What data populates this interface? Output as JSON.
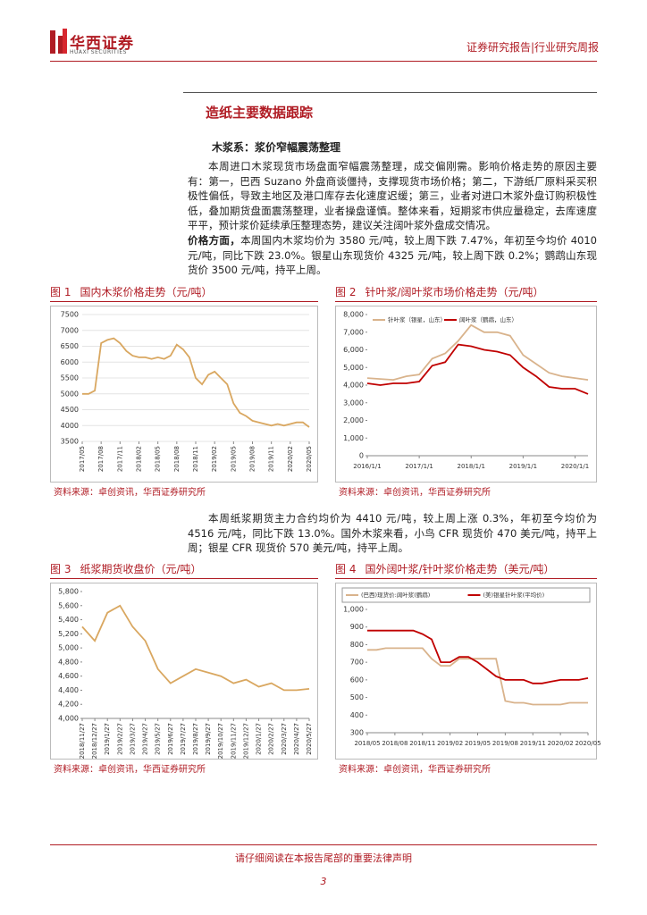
{
  "header": {
    "logo_cn": "华西证券",
    "logo_en": "HUAXI SECURITIES",
    "right": "证券研究报告|行业研究周报"
  },
  "section_title": "造纸主要数据跟踪",
  "subsection": "木浆系：浆价窄幅震荡整理",
  "paragraphs": [
    "本周进口木浆现货市场盘面窄幅震荡整理，成交偏刚需。影响价格走势的原因主要有：第一，巴西 Suzano 外盘商谈僵持，支撑现货市场价格；第二，下游纸厂原料采买积极性偏低，导致主地区及港口库存去化速度迟缓；第三，业者对进口木浆外盘订购积极性低，叠加期货盘面震荡整理，业者操盘谨慎。整体来看，短期浆市供应量稳定，去库速度平平，预计浆价延续承压整理态势，建议关注阔叶浆外盘成交情况。",
    "本周国内木浆均价为 3580 元/吨，较上周下跌 7.47%，年初至今均价 4010 元/吨，同比下跌 23.0%。银星山东现货价 4325 元/吨，较上周下跌 0.2%；鹦鹉山东现货价 3500 元/吨，持平上周。",
    "本周纸浆期货主力合约均价为 4410 元/吨，较上周上涨 0.3%，年初至今均价为 4516 元/吨，同比下跌 13.0%。国外木浆来看，小鸟 CFR 现货价 470 美元/吨，持平上周；银星 CFR 现货价 570 美元/吨，持平上周。"
  ],
  "price_lead": "价格方面，",
  "figures": [
    {
      "number": "图 1",
      "caption": "国内木浆价格走势（元/吨）",
      "source": "资料来源：卓创资讯，华西证券研究所",
      "chart_data": {
        "type": "line",
        "categories": [
          "2017/05",
          null,
          null,
          "2017/08",
          null,
          null,
          "2017/11",
          null,
          null,
          "2018/02",
          null,
          null,
          "2018/05",
          null,
          null,
          "2018/08",
          null,
          null,
          "2018/11",
          null,
          null,
          "2019/02",
          null,
          null,
          "2019/05",
          null,
          null,
          "2019/08",
          null,
          null,
          "2019/11",
          null,
          null,
          "2020/02",
          null,
          null,
          "2020/05"
        ],
        "series": [
          {
            "color": "#d9a760",
            "values": [
              5000,
              5000,
              5100,
              6600,
              6700,
              6750,
              6600,
              6350,
              6200,
              6150,
              6150,
              6100,
              6150,
              6100,
              6200,
              6550,
              6400,
              6150,
              5500,
              5300,
              5600,
              5700,
              5500,
              5300,
              4700,
              4400,
              4300,
              4150,
              4100,
              4050,
              4000,
              4050,
              4000,
              4050,
              4100,
              4100,
              3950
            ]
          }
        ],
        "ylim": [
          3500,
          7500
        ],
        "yticks": [
          3500,
          4000,
          4500,
          5000,
          5500,
          6000,
          6500,
          7000,
          7500
        ],
        "grid": true
      }
    },
    {
      "number": "图 2",
      "caption": "针叶浆/阔叶浆市场价格走势（元/吨）",
      "source": "资料来源：卓创资讯，华西证券研究所",
      "chart_data": {
        "type": "line",
        "categories": [
          "2016/1/1",
          null,
          null,
          null,
          "2017/1/1",
          null,
          null,
          null,
          "2018/1/1",
          null,
          null,
          null,
          "2019/1/1",
          null,
          null,
          null,
          "2020/1/1",
          null
        ],
        "series": [
          {
            "name": "针叶浆（银星，山东）",
            "color": "#d9b38c",
            "values": [
              4400,
              4350,
              4300,
              4500,
              4600,
              5500,
              5800,
              6500,
              7400,
              7000,
              7000,
              6800,
              5700,
              5200,
              4700,
              4500,
              4400,
              4300
            ]
          },
          {
            "name": "阔叶浆（鹦鹉，山东）",
            "color": "#c00000",
            "values": [
              4100,
              4000,
              4100,
              4100,
              4200,
              5100,
              5300,
              6300,
              6200,
              6000,
              5900,
              5700,
              5000,
              4500,
              3900,
              3800,
              3800,
              3500
            ]
          }
        ],
        "ylim": [
          0,
          8000
        ],
        "yticks": [
          0,
          {
            "value": 1000,
            "label": "1,000"
          },
          {
            "value": 2000,
            "label": "2,000"
          },
          {
            "value": 3000,
            "label": "3,000"
          },
          {
            "value": 4000,
            "label": "4,000"
          },
          {
            "value": 5000,
            "label": "5,000"
          },
          {
            "value": 6000,
            "label": "6,000"
          },
          {
            "value": 7000,
            "label": "7,000"
          },
          {
            "value": 8000,
            "label": "8,000"
          }
        ],
        "grid": false,
        "legend": "top-left"
      }
    },
    {
      "number": "图 3",
      "caption": "纸浆期货收盘价（元/吨）",
      "source": "资料来源：卓创资讯，华西证券研究所",
      "chart_data": {
        "type": "line",
        "categories": [
          "2018/11/27",
          "2018/12/27",
          "2019/1/27",
          "2019/2/27",
          "2019/3/27",
          "2019/4/27",
          "2019/5/27",
          "2019/6/27",
          "2019/7/27",
          "2019/8/27",
          "2019/9/27",
          "2019/10/27",
          "2019/11/27",
          "2019/12/27",
          "2020/1/27",
          "2020/2/27",
          "2020/3/27",
          "2020/4/27",
          "2020/5/27"
        ],
        "series": [
          {
            "color": "#d9a760",
            "values": [
              5300,
              5100,
              5500,
              5600,
              5300,
              5100,
              4700,
              4500,
              4600,
              4700,
              4650,
              4600,
              4500,
              4550,
              4450,
              4500,
              4400,
              4400,
              4420
            ]
          }
        ],
        "ylim": [
          4000,
          5800
        ],
        "yticks": [
          {
            "value": 4000,
            "label": "4,000"
          },
          {
            "value": 4200,
            "label": "4,200"
          },
          {
            "value": 4400,
            "label": "4,400"
          },
          {
            "value": 4600,
            "label": "4,600"
          },
          {
            "value": 4800,
            "label": "4,800"
          },
          {
            "value": 5000,
            "label": "5,000"
          },
          {
            "value": 5200,
            "label": "5,200"
          },
          {
            "value": 5400,
            "label": "5,400"
          },
          {
            "value": 5600,
            "label": "5,600"
          },
          {
            "value": 5800,
            "label": "5,800"
          }
        ],
        "grid": false
      }
    },
    {
      "number": "图 4",
      "caption": "国外阔叶浆/针叶浆价格走势（美元/吨）",
      "source": "资料来源：卓创资讯，华西证券研究所",
      "chart_data": {
        "type": "line",
        "categories": [
          "2018/05",
          null,
          null,
          "2018/08",
          null,
          null,
          "2018/11",
          null,
          null,
          "2019/02",
          null,
          null,
          "2019/05",
          null,
          null,
          "2019/08",
          null,
          null,
          "2019/11",
          null,
          null,
          "2020/02",
          null,
          null,
          "2020/05"
        ],
        "series": [
          {
            "name": "(巴西)现货价:阔叶浆(鹦鹉)",
            "color": "#d9b38c",
            "values": [
              770,
              770,
              780,
              780,
              780,
              780,
              780,
              720,
              680,
              680,
              720,
              720,
              720,
              720,
              720,
              480,
              470,
              470,
              460,
              460,
              460,
              460,
              470,
              470,
              470
            ]
          },
          {
            "name": "(美)银星针叶浆(平均价)",
            "color": "#c00000",
            "values": [
              880,
              880,
              880,
              880,
              880,
              880,
              860,
              830,
              700,
              700,
              730,
              730,
              700,
              660,
              620,
              600,
              600,
              600,
              580,
              580,
              590,
              600,
              600,
              600,
              610
            ]
          }
        ],
        "ylim": [
          300,
          1000
        ],
        "yticks": [
          300,
          400,
          500,
          600,
          700,
          800,
          900,
          {
            "value": 1000,
            "label": "1,000"
          }
        ],
        "grid": false,
        "legend": "top"
      }
    }
  ],
  "footer": {
    "notice": "请仔细阅读在本报告尾部的重要法律声明",
    "page": "3"
  }
}
